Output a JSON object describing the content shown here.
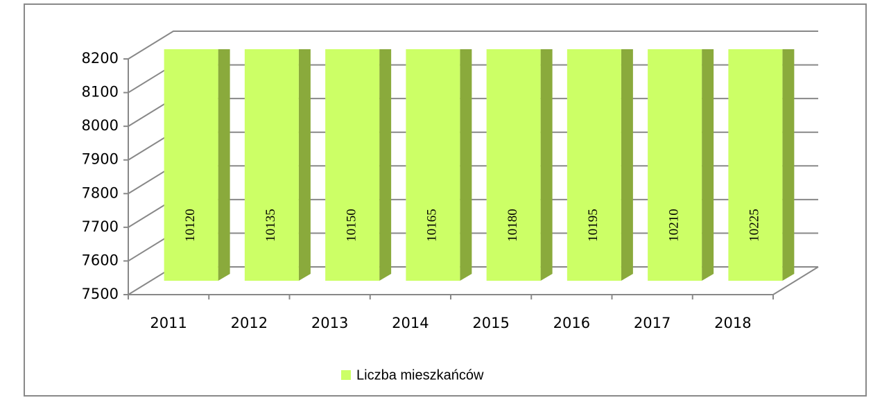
{
  "chart_data": {
    "type": "bar3d",
    "categories": [
      "2011",
      "2012",
      "2013",
      "2014",
      "2015",
      "2016",
      "2017",
      "2018"
    ],
    "series": [
      {
        "name": "Liczba mieszkańców",
        "color": "#ccff66",
        "values": [
          10120,
          10135,
          10150,
          10165,
          10180,
          10195,
          10210,
          10225
        ]
      }
    ],
    "ylim": [
      7500,
      8200
    ],
    "yticks": [
      7500,
      7600,
      7700,
      7800,
      7900,
      8000,
      8100,
      8200
    ],
    "grid": true,
    "legend": "bottom"
  }
}
